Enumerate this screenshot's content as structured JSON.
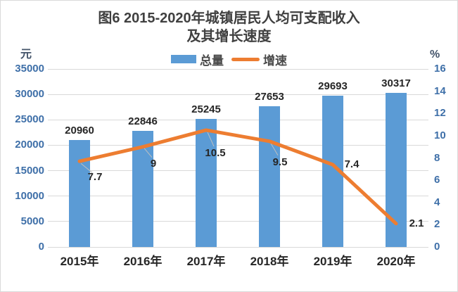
{
  "colors": {
    "bar": "#5B9BD5",
    "line": "#ED7D31",
    "axis_tick_text": "#3E6FA8",
    "category_text": "#262626",
    "data_label_text": "#262626",
    "title_text": "#404040",
    "legend_text": "#4A4A4A",
    "unit_text": "#44546A",
    "gridline": "#D9D9D9",
    "leader_line": "#BFBFBF",
    "background": "#FFFFFF",
    "border": "#D9D9D9"
  },
  "chart_data": {
    "type": "bar+line combo",
    "title_line1": "图6 2015-2020年城镇居民人均可支配收入",
    "title_line2": "及其增长速度",
    "categories": [
      "2015年",
      "2016年",
      "2017年",
      "2018年",
      "2019年",
      "2020年"
    ],
    "series": [
      {
        "name": "总量",
        "type": "bar",
        "axis": "left",
        "color": "#5B9BD5",
        "values": [
          20960,
          22846,
          25245,
          27653,
          29693,
          30317
        ],
        "labels": [
          "20960",
          "22846",
          "25245",
          "27653",
          "29693",
          "30317"
        ]
      },
      {
        "name": "增速",
        "type": "line",
        "axis": "right",
        "color": "#ED7D31",
        "values": [
          7.7,
          9,
          10.5,
          9.5,
          7.4,
          2.1
        ],
        "labels": [
          "7.7",
          "9",
          "10.5",
          "9.5",
          "7.4",
          "2.1"
        ]
      }
    ],
    "left_axis": {
      "label": "元",
      "min": 0,
      "max": 35000,
      "step": 5000,
      "ticks": [
        "35000",
        "30000",
        "25000",
        "20000",
        "15000",
        "10000",
        "5000",
        "0"
      ]
    },
    "right_axis": {
      "label": "%",
      "min": 0,
      "max": 16,
      "step": 2,
      "ticks": [
        "16",
        "14",
        "12",
        "10",
        "8",
        "6",
        "4",
        "2",
        "0"
      ]
    },
    "legend_position": "top-center",
    "grid": "horizontal"
  }
}
